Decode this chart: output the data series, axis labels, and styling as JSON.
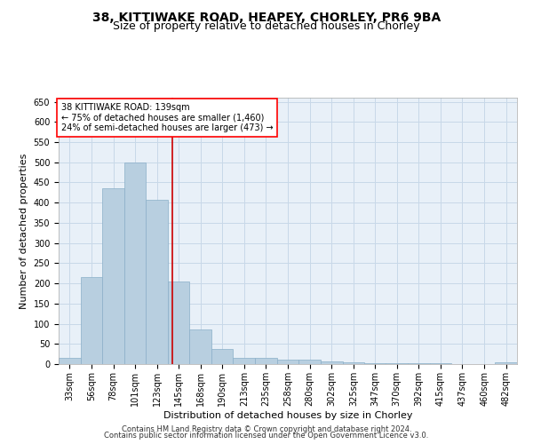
{
  "title1": "38, KITTIWAKE ROAD, HEAPEY, CHORLEY, PR6 9BA",
  "title2": "Size of property relative to detached houses in Chorley",
  "xlabel": "Distribution of detached houses by size in Chorley",
  "ylabel": "Number of detached properties",
  "footer1": "Contains HM Land Registry data © Crown copyright and database right 2024.",
  "footer2": "Contains public sector information licensed under the Open Government Licence v3.0.",
  "annotation_line1": "38 KITTIWAKE ROAD: 139sqm",
  "annotation_line2": "← 75% of detached houses are smaller (1,460)",
  "annotation_line3": "24% of semi-detached houses are larger (473) →",
  "bar_color": "#b8cfe0",
  "bar_edge_color": "#8aafc8",
  "vline_color": "#cc0000",
  "vline_x": 139,
  "categories": [
    "33sqm",
    "56sqm",
    "78sqm",
    "101sqm",
    "123sqm",
    "145sqm",
    "168sqm",
    "190sqm",
    "213sqm",
    "235sqm",
    "258sqm",
    "280sqm",
    "302sqm",
    "325sqm",
    "347sqm",
    "370sqm",
    "392sqm",
    "415sqm",
    "437sqm",
    "460sqm",
    "482sqm"
  ],
  "bin_edges": [
    22,
    44.5,
    67,
    89.5,
    112,
    134,
    156.5,
    179,
    201.5,
    224,
    246.5,
    269,
    291.5,
    314,
    336.5,
    358.5,
    381,
    403.5,
    426,
    448.5,
    471,
    493.5
  ],
  "values": [
    15,
    215,
    435,
    500,
    408,
    205,
    85,
    38,
    15,
    15,
    12,
    10,
    6,
    4,
    3,
    2,
    2,
    2,
    1,
    1,
    4
  ],
  "ylim": [
    0,
    660
  ],
  "yticks": [
    0,
    50,
    100,
    150,
    200,
    250,
    300,
    350,
    400,
    450,
    500,
    550,
    600,
    650
  ],
  "grid_color": "#c8d8e8",
  "bg_color": "#e8f0f8",
  "title1_fontsize": 10,
  "title2_fontsize": 9,
  "xlabel_fontsize": 8,
  "ylabel_fontsize": 8,
  "tick_fontsize": 7,
  "annot_fontsize": 7,
  "footer_fontsize": 6
}
